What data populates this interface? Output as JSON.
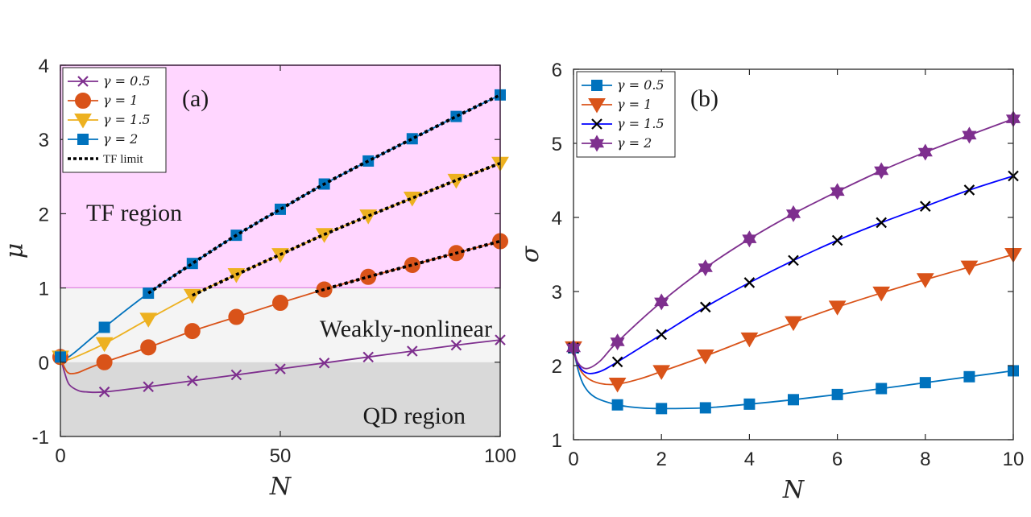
{
  "chart_data": [
    {
      "type": "line",
      "panel_label": "(a)",
      "xlabel": "N",
      "ylabel": "μ",
      "xlim": [
        0,
        100
      ],
      "ylim": [
        -1,
        4
      ],
      "xticks": [
        "0",
        "50",
        "100"
      ],
      "yticks": [
        "-1",
        "0",
        "1",
        "2",
        "3",
        "4"
      ],
      "regions": [
        {
          "name": "TF region",
          "y_range": [
            1,
            4
          ],
          "color": "#ffd6ff",
          "border": "#cc44cc"
        },
        {
          "name": "Weakly-nonlinear",
          "y_range": [
            0,
            1
          ],
          "color": "#f4f4f4"
        },
        {
          "name": "QD region",
          "y_range": [
            -1,
            0
          ],
          "color": "#d9d9d9"
        }
      ],
      "series": [
        {
          "name": "γ = 0.5",
          "color": "#7E2F8E",
          "marker": "x",
          "curve_x": [
            0,
            1,
            2,
            4,
            6,
            10,
            20,
            30,
            40,
            50,
            60,
            70,
            80,
            90,
            100
          ],
          "curve_y": [
            0.07,
            -0.15,
            -0.3,
            -0.38,
            -0.4,
            -0.4,
            -0.33,
            -0.25,
            -0.17,
            -0.09,
            -0.01,
            0.07,
            0.15,
            0.23,
            0.3
          ],
          "marker_x": [
            0,
            10,
            20,
            30,
            40,
            50,
            60,
            70,
            80,
            90,
            100
          ],
          "marker_y": [
            0.07,
            -0.4,
            -0.33,
            -0.25,
            -0.17,
            -0.09,
            -0.01,
            0.07,
            0.15,
            0.23,
            0.3
          ]
        },
        {
          "name": "γ = 1",
          "color": "#D95319",
          "marker": "circle",
          "curve_x": [
            0,
            1,
            2,
            4,
            6,
            10,
            20,
            30,
            40,
            50,
            60,
            70,
            80,
            90,
            100
          ],
          "curve_y": [
            0.07,
            -0.08,
            -0.15,
            -0.14,
            -0.09,
            0.0,
            0.2,
            0.42,
            0.61,
            0.8,
            0.98,
            1.15,
            1.31,
            1.47,
            1.63
          ],
          "marker_x": [
            0,
            10,
            20,
            30,
            40,
            50,
            60,
            70,
            80,
            90,
            100
          ],
          "marker_y": [
            0.07,
            0.0,
            0.2,
            0.42,
            0.61,
            0.8,
            0.98,
            1.15,
            1.31,
            1.47,
            1.63
          ]
        },
        {
          "name": "γ = 1.5",
          "color": "#EDB120",
          "marker": "triangle-down",
          "curve_x": [
            0,
            1,
            3,
            10,
            20,
            30,
            40,
            50,
            60,
            70,
            80,
            90,
            100
          ],
          "curve_y": [
            0.07,
            0.03,
            0.06,
            0.25,
            0.58,
            0.9,
            1.18,
            1.45,
            1.72,
            1.97,
            2.21,
            2.45,
            2.68
          ],
          "marker_x": [
            0,
            10,
            20,
            30,
            40,
            50,
            60,
            70,
            80,
            90,
            100
          ],
          "marker_y": [
            0.07,
            0.25,
            0.58,
            0.9,
            1.18,
            1.45,
            1.72,
            1.97,
            2.21,
            2.45,
            2.68
          ]
        },
        {
          "name": "γ = 2",
          "color": "#0072BD",
          "marker": "square",
          "curve_x": [
            0,
            1,
            3,
            10,
            20,
            30,
            40,
            50,
            60,
            70,
            80,
            90,
            100
          ],
          "curve_y": [
            0.07,
            0.05,
            0.12,
            0.47,
            0.93,
            1.33,
            1.71,
            2.06,
            2.4,
            2.71,
            3.01,
            3.31,
            3.6
          ],
          "marker_x": [
            0,
            10,
            20,
            30,
            40,
            50,
            60,
            70,
            80,
            90,
            100
          ],
          "marker_y": [
            0.07,
            0.47,
            0.93,
            1.33,
            1.71,
            2.06,
            2.4,
            2.71,
            3.01,
            3.31,
            3.6
          ]
        },
        {
          "name": "TF limit",
          "color": "#000000",
          "style": "dotted",
          "segments": [
            {
              "x": [
                20,
                30,
                40,
                50,
                60,
                70,
                80,
                90,
                100
              ],
              "y": [
                0.93,
                1.33,
                1.71,
                2.06,
                2.4,
                2.71,
                3.01,
                3.31,
                3.6
              ]
            },
            {
              "x": [
                30,
                40,
                50,
                60,
                70,
                80,
                90,
                100
              ],
              "y": [
                0.9,
                1.18,
                1.45,
                1.72,
                1.97,
                2.21,
                2.45,
                2.68
              ]
            },
            {
              "x": [
                58,
                60,
                70,
                80,
                90,
                100
              ],
              "y": [
                0.95,
                0.98,
                1.15,
                1.31,
                1.47,
                1.63
              ]
            }
          ]
        }
      ]
    },
    {
      "type": "line",
      "panel_label": "(b)",
      "xlabel": "N",
      "ylabel": "σ",
      "xlim": [
        0,
        10
      ],
      "ylim": [
        1,
        6
      ],
      "xticks": [
        "0",
        "2",
        "4",
        "6",
        "8",
        "10"
      ],
      "yticks": [
        "1",
        "2",
        "3",
        "4",
        "5",
        "6"
      ],
      "series": [
        {
          "name": "γ = 0.5",
          "color": "#0072BD",
          "marker": "square",
          "curve_x": [
            0,
            0.1,
            0.25,
            0.5,
            1,
            1.5,
            2,
            3,
            4,
            5,
            6,
            7,
            8,
            9,
            10
          ],
          "curve_y": [
            2.24,
            1.95,
            1.72,
            1.57,
            1.47,
            1.43,
            1.42,
            1.43,
            1.48,
            1.54,
            1.61,
            1.69,
            1.77,
            1.85,
            1.93
          ],
          "marker_x": [
            0,
            1,
            2,
            3,
            4,
            5,
            6,
            7,
            8,
            9,
            10
          ],
          "marker_y": [
            2.24,
            1.47,
            1.42,
            1.43,
            1.48,
            1.54,
            1.61,
            1.69,
            1.77,
            1.85,
            1.93
          ]
        },
        {
          "name": "γ = 1",
          "color": "#D95319",
          "marker": "triangle-down",
          "curve_x": [
            0,
            0.1,
            0.3,
            0.6,
            1,
            1.5,
            2,
            3,
            4,
            5,
            6,
            7,
            8,
            9,
            10
          ],
          "curve_y": [
            2.24,
            2.0,
            1.84,
            1.76,
            1.75,
            1.82,
            1.92,
            2.13,
            2.36,
            2.58,
            2.79,
            2.98,
            3.16,
            3.33,
            3.5
          ],
          "marker_x": [
            0,
            1,
            2,
            3,
            4,
            5,
            6,
            7,
            8,
            9,
            10
          ],
          "marker_y": [
            2.24,
            1.75,
            1.92,
            2.13,
            2.36,
            2.58,
            2.79,
            2.98,
            3.16,
            3.33,
            3.5
          ]
        },
        {
          "name": "γ = 1.5",
          "color": "#0000FF",
          "marker": "x",
          "marker_color": "#000000",
          "curve_x": [
            0,
            0.1,
            0.3,
            0.6,
            1,
            2,
            3,
            4,
            5,
            6,
            7,
            8,
            9,
            10
          ],
          "curve_y": [
            2.24,
            2.02,
            1.9,
            1.92,
            2.05,
            2.42,
            2.79,
            3.12,
            3.42,
            3.69,
            3.93,
            4.15,
            4.37,
            4.56
          ],
          "marker_x": [
            0,
            1,
            2,
            3,
            4,
            5,
            6,
            7,
            8,
            9,
            10
          ],
          "marker_y": [
            2.24,
            2.05,
            2.42,
            2.79,
            3.12,
            3.42,
            3.69,
            3.93,
            4.15,
            4.37,
            4.56
          ]
        },
        {
          "name": "γ = 2",
          "color": "#7E2F8E",
          "marker": "hexagram",
          "curve_x": [
            0,
            0.1,
            0.3,
            0.6,
            1,
            2,
            3,
            4,
            5,
            6,
            7,
            8,
            9,
            10
          ],
          "curve_y": [
            2.24,
            2.04,
            1.96,
            2.06,
            2.32,
            2.86,
            3.32,
            3.71,
            4.05,
            4.35,
            4.63,
            4.88,
            5.11,
            5.33
          ],
          "marker_x": [
            0,
            1,
            2,
            3,
            4,
            5,
            6,
            7,
            8,
            9,
            10
          ],
          "marker_y": [
            2.24,
            2.32,
            2.86,
            3.32,
            3.71,
            4.05,
            4.35,
            4.63,
            4.88,
            5.11,
            5.33
          ]
        }
      ]
    }
  ]
}
